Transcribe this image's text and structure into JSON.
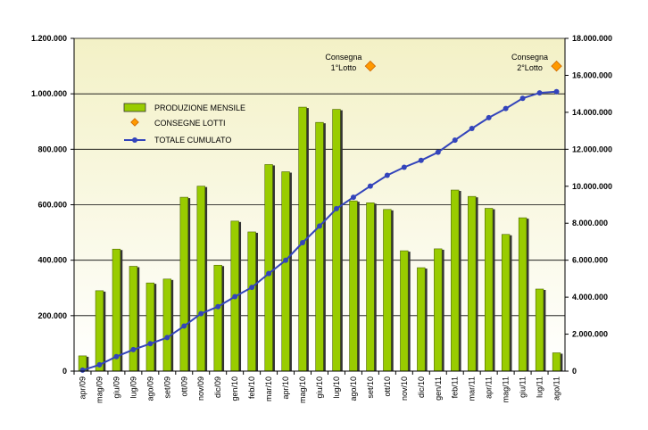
{
  "chart_data": {
    "type": "bar",
    "categories": [
      "apr/09",
      "mag/09",
      "giu/09",
      "lug/09",
      "ago/09",
      "set/09",
      "ott/09",
      "nov/09",
      "dic/09",
      "gen/10",
      "feb/10",
      "mar/10",
      "apr/10",
      "mag/10",
      "giu/10",
      "lug/10",
      "ago/10",
      "set/10",
      "ott/10",
      "nov/10",
      "dic/10",
      "gen/11",
      "feb/11",
      "mar/11",
      "apr/11",
      "mag/11",
      "giu/11",
      "lug/11",
      "ago/11"
    ],
    "y_left_ticks": [
      "0",
      "200.000",
      "400.000",
      "600.000",
      "800.000",
      "1.000.000",
      "1.200.000"
    ],
    "y_right_ticks": [
      "0",
      "2.000.000",
      "4.000.000",
      "6.000.000",
      "8.000.000",
      "10.000.000",
      "12.000.000",
      "14.000.000",
      "16.000.000",
      "18.000.000"
    ],
    "ylim_left": [
      0,
      1200000
    ],
    "ylim_right": [
      0,
      18000000
    ],
    "grid": true,
    "legend_position": "top-left",
    "series": [
      {
        "name": "PRODUZIONE MENSILE",
        "type": "bar",
        "axis": "left",
        "color": "#99cc00",
        "values": [
          55000,
          290000,
          440000,
          378000,
          318000,
          332000,
          627000,
          667000,
          382000,
          541000,
          502000,
          745000,
          719000,
          952000,
          897000,
          944000,
          614000,
          607000,
          583000,
          434000,
          373000,
          441000,
          653000,
          630000,
          587000,
          493000,
          553000,
          296000,
          66000
        ]
      },
      {
        "name": "TOTALE CUMULATO",
        "type": "line",
        "axis": "right",
        "color": "#3344bb",
        "values": [
          55000,
          345000,
          785000,
          1163000,
          1481000,
          1813000,
          2440000,
          3107000,
          3489000,
          4030000,
          4532000,
          5277000,
          5996000,
          6948000,
          7845000,
          8789000,
          9403000,
          10010000,
          10593000,
          11027000,
          11400000,
          11841000,
          12494000,
          13124000,
          13711000,
          14204000,
          14757000,
          15053000,
          15119000
        ]
      },
      {
        "name": "CONSEGNE LOTTI",
        "type": "scatter",
        "axis": "left",
        "color": "#ff9900",
        "points": [
          {
            "category": "set/10",
            "y": 1100000,
            "label_line1": "Consegna",
            "label_line2": "1°Lotto"
          },
          {
            "category": "ago/11",
            "y": 1100000,
            "label_line1": "Consegna",
            "label_line2": "2°Lotto"
          }
        ]
      }
    ]
  }
}
